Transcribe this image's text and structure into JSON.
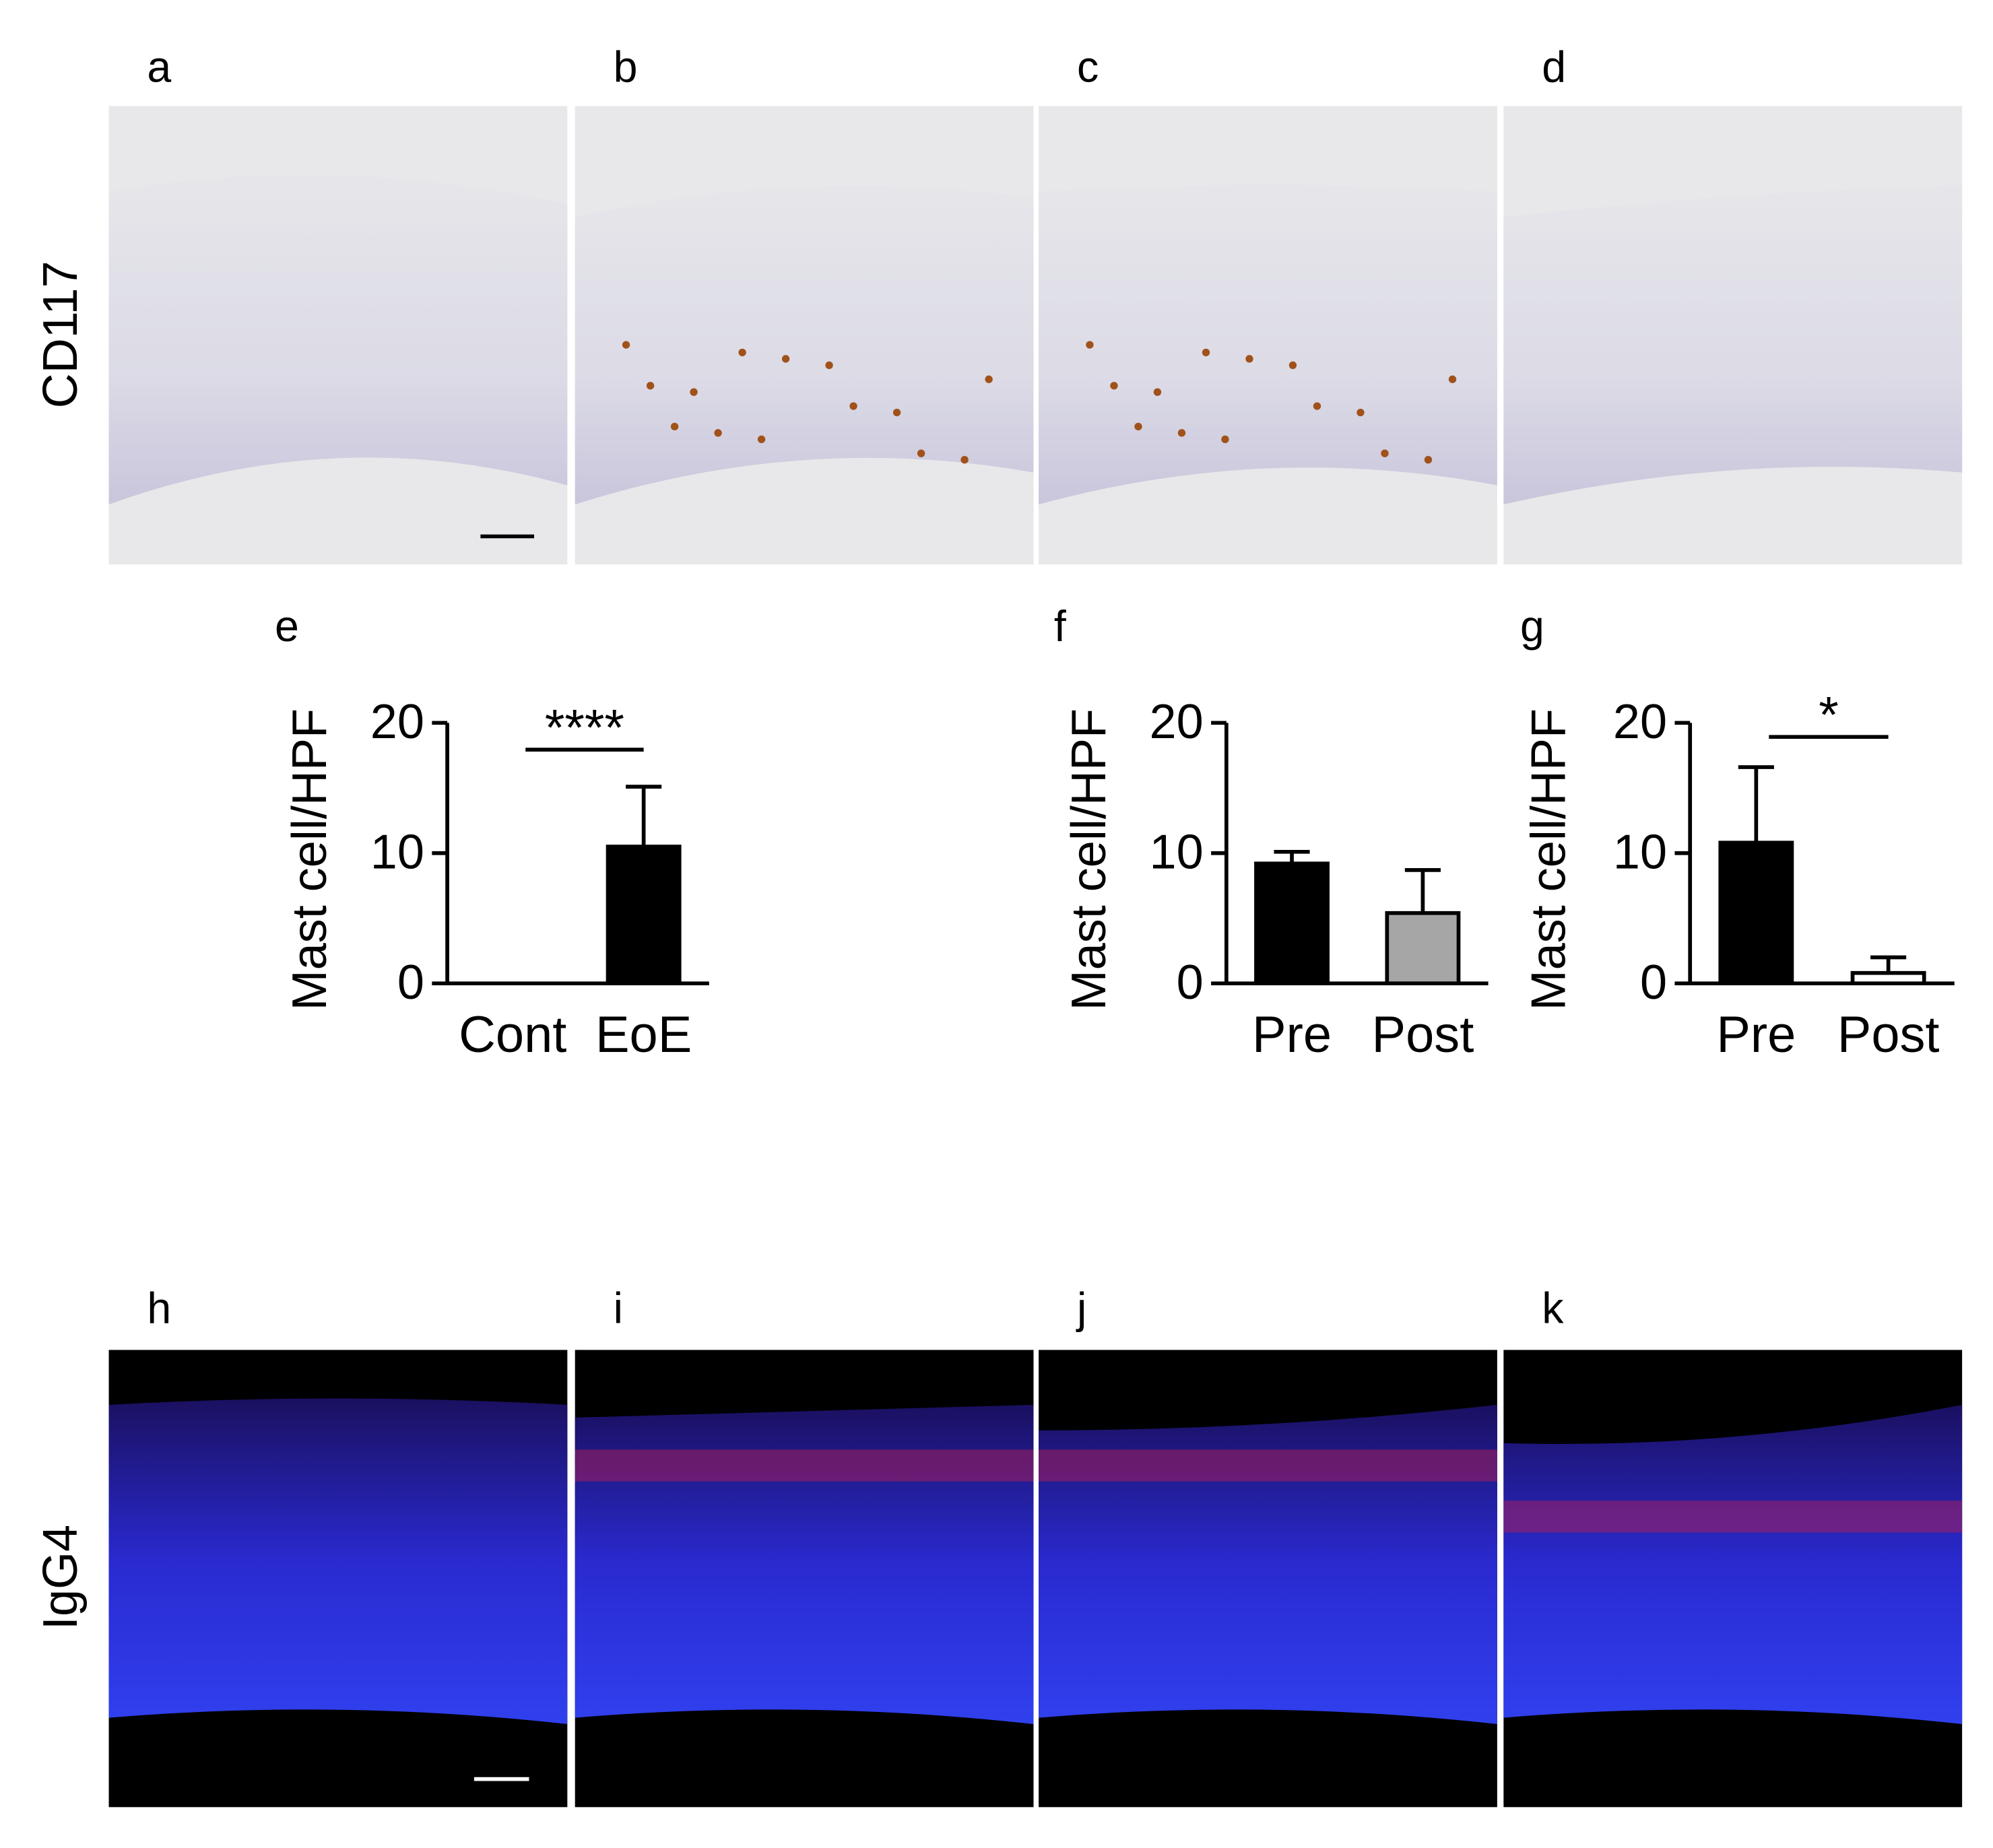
{
  "panels_top": [
    "a",
    "b",
    "c",
    "d"
  ],
  "panels_bottom": [
    "h",
    "i",
    "j",
    "k"
  ],
  "row_labels": [
    "CD117",
    "IgG4"
  ],
  "chart_data": [
    {
      "type": "bar",
      "panel": "e",
      "y_label": "Mast cell/HPF",
      "categories": [
        "Cont",
        "EoE"
      ],
      "values": [
        0,
        10.5
      ],
      "errors": [
        0,
        4.6
      ],
      "colors": [
        "#000000",
        "#000000"
      ],
      "annotation": "****",
      "ylim": [
        0,
        20
      ],
      "yticks": [
        0,
        10,
        20
      ]
    },
    {
      "type": "bar",
      "panel": "f",
      "y_label": "Mast cell/HPF",
      "categories": [
        "Pre",
        "Post"
      ],
      "values": [
        9.2,
        5.4
      ],
      "errors": [
        0.9,
        3.3
      ],
      "colors": [
        "#000000",
        "#a6a6a6"
      ],
      "ylim": [
        0,
        20
      ],
      "yticks": [
        0,
        10,
        20
      ]
    },
    {
      "type": "bar",
      "panel": "g",
      "y_label": "Mast cell/HPF",
      "categories": [
        "Pre",
        "Post"
      ],
      "values": [
        10.8,
        0.8
      ],
      "errors": [
        5.8,
        1.2
      ],
      "colors": [
        "#000000",
        "#ffffff"
      ],
      "annotation": "*",
      "ylim": [
        0,
        20
      ],
      "yticks": [
        0,
        10,
        20
      ]
    }
  ]
}
